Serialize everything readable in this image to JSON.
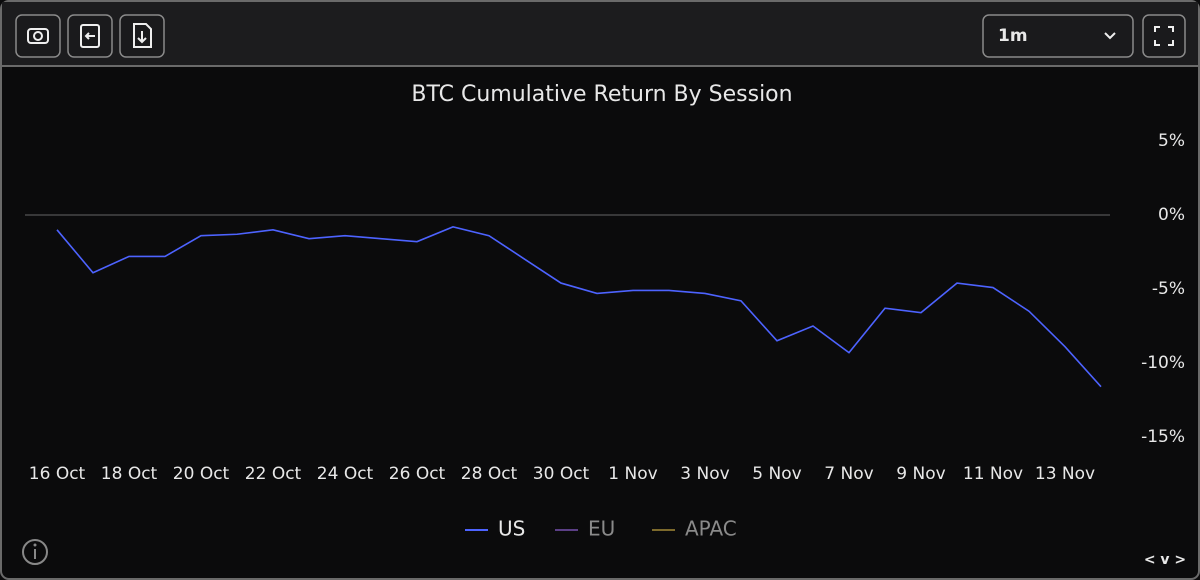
{
  "chart_data": {
    "type": "line",
    "title": "BTC Cumulative Return By Session",
    "categories": [
      "16 Oct",
      null,
      "18 Oct",
      null,
      "20 Oct",
      null,
      "22 Oct",
      null,
      "24 Oct",
      null,
      "26 Oct",
      null,
      "28 Oct",
      null,
      "30 Oct",
      null,
      "1 Nov",
      null,
      "3 Nov",
      null,
      "5 Nov",
      null,
      "7 Nov",
      null,
      "9 Nov",
      null,
      "11 Nov",
      null,
      "13 Nov",
      null
    ],
    "series": [
      {
        "name": "US",
        "color": "#4d63ff",
        "hidden": false,
        "values": [
          -1.0,
          -3.9,
          -2.8,
          -2.8,
          -1.4,
          -1.3,
          -1.0,
          -1.6,
          -1.4,
          -1.6,
          -1.8,
          -0.8,
          -1.4,
          -3.0,
          -4.6,
          -5.3,
          -5.1,
          -5.1,
          -5.3,
          -5.8,
          -8.5,
          -7.5,
          -9.3,
          -6.3,
          -6.6,
          -4.6,
          -4.9,
          -6.5,
          -8.9,
          -11.6
        ]
      },
      {
        "name": "EU",
        "color": "#5b3f86",
        "hidden": true,
        "values": [
          null,
          null,
          null,
          null,
          null,
          null,
          null,
          null,
          null,
          null,
          null,
          null,
          null,
          null,
          null,
          null,
          null,
          null,
          null,
          null,
          null,
          null,
          null,
          null,
          null,
          null,
          null,
          null,
          null,
          null
        ]
      },
      {
        "name": "APAC",
        "color": "#7d6a2c",
        "hidden": true,
        "values": [
          null,
          null,
          null,
          null,
          null,
          null,
          null,
          null,
          null,
          null,
          null,
          null,
          null,
          null,
          null,
          null,
          null,
          null,
          null,
          null,
          null,
          null,
          null,
          null,
          null,
          null,
          null,
          null,
          null,
          null
        ]
      }
    ],
    "ylim": [
      -15,
      5
    ],
    "yticks": [
      {
        "value": 5,
        "label": "5%"
      },
      {
        "value": 0,
        "label": "0%"
      },
      {
        "value": -5,
        "label": "-5%"
      },
      {
        "value": -10,
        "label": "-10%"
      },
      {
        "value": -15,
        "label": "-15%"
      }
    ],
    "zeroline": true,
    "grid": false,
    "legend": "bottom"
  },
  "ui": {
    "range": "1m",
    "nav": "< v >"
  }
}
